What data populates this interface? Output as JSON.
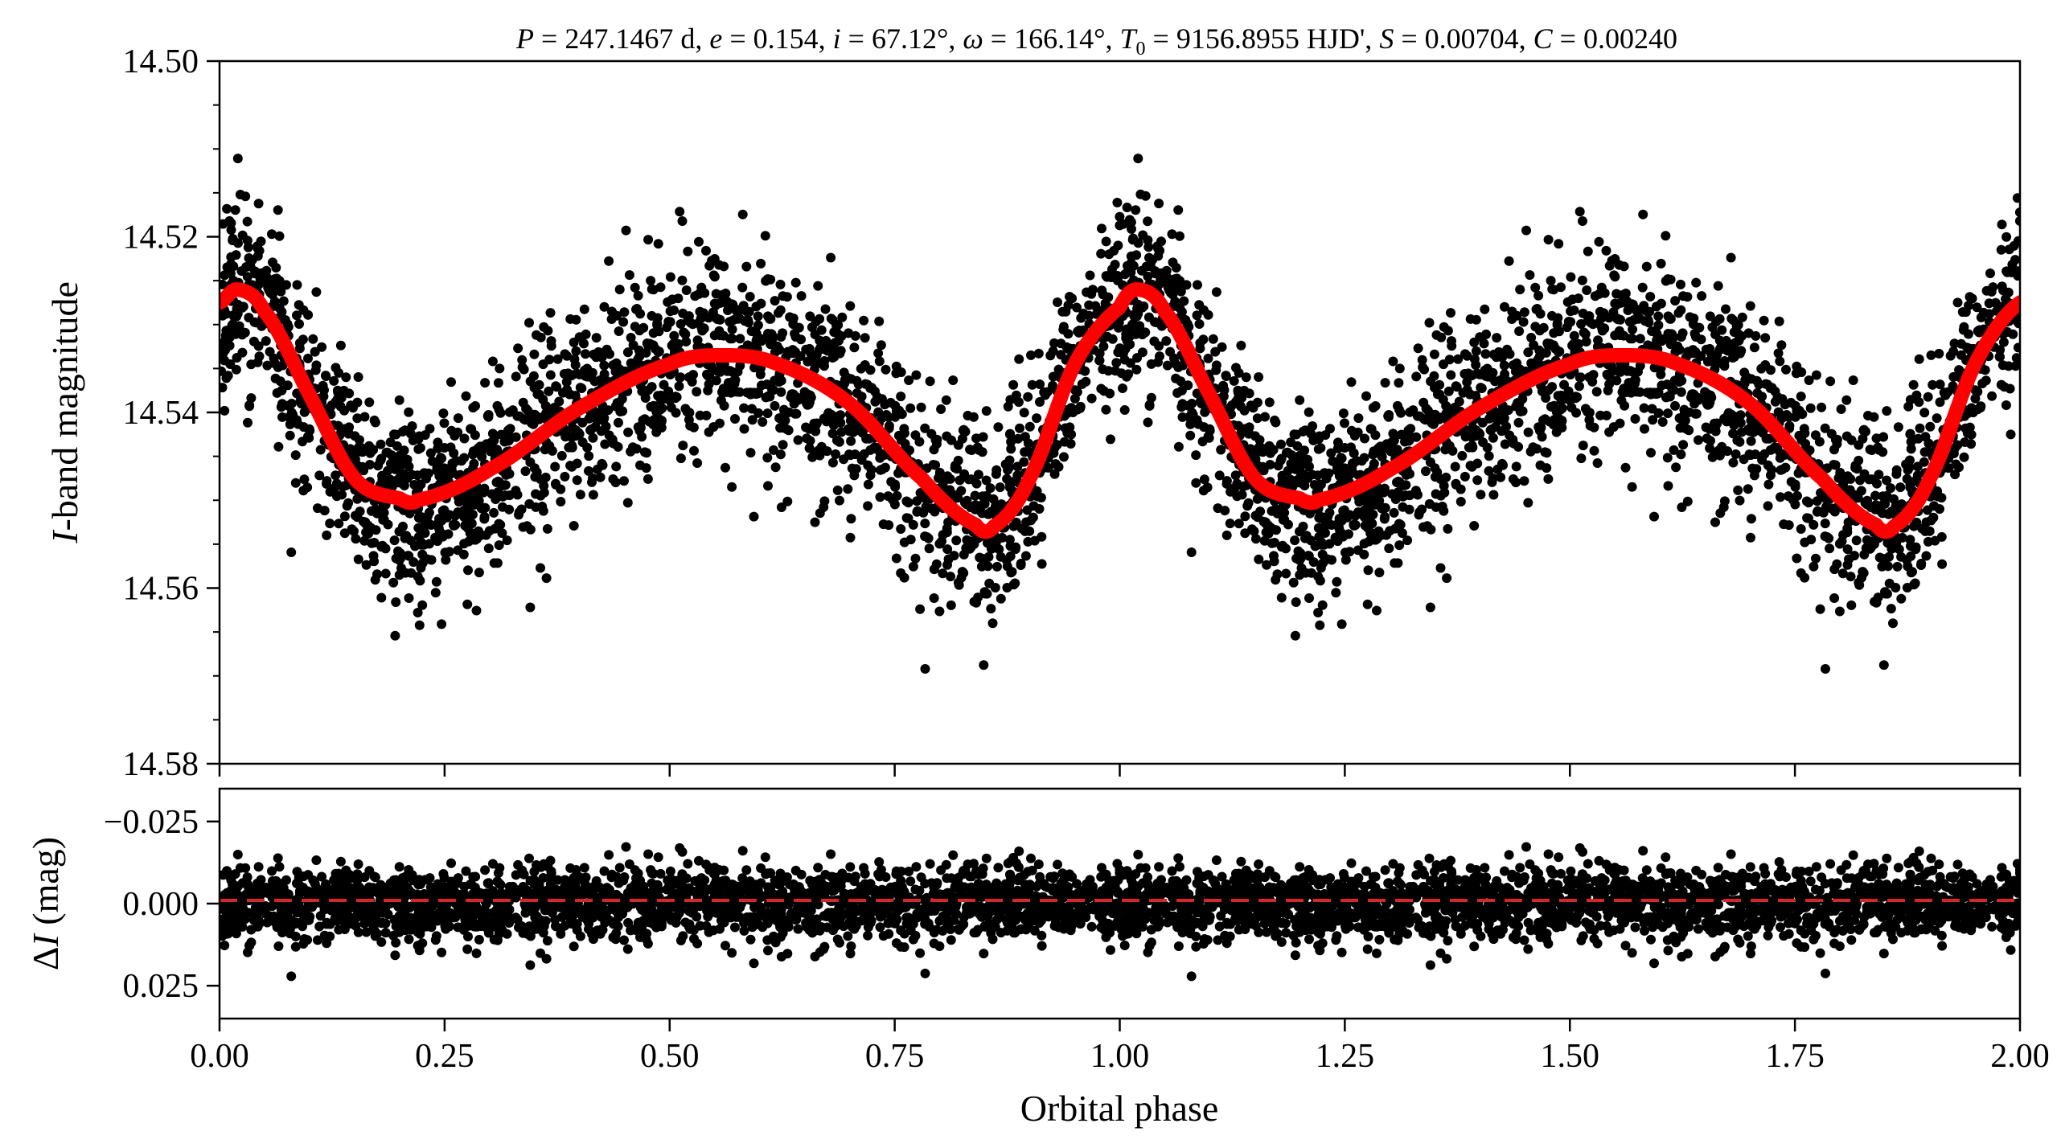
{
  "chart_data": [
    {
      "type": "scatter",
      "panel": "top",
      "title": "P = 247.1467 d, e = 0.154, i = 67.12°, ω = 166.14°, T0 = 9156.8955 HJD', S = 0.00704, C = 0.00240",
      "title_parts": {
        "p_sym": "P",
        "p_val": " = 247.1467 d, ",
        "e_sym": "e",
        "e_val": " = 0.154, ",
        "i_sym": "i",
        "i_val": " = 67.12°, ",
        "w_sym": "ω",
        "w_val": " = 166.14°, ",
        "t_sym": "T",
        "t_sub": "0",
        "t_val": " = 9156.8955 HJD', ",
        "s_sym": "S",
        "s_val": " = 0.00704, ",
        "c_sym": "C",
        "c_val": " = 0.00240"
      },
      "xlabel": "Orbital phase",
      "ylabel": "I-band magnitude",
      "ylabel_parts": {
        "italic": "I",
        "rest": "-band magnitude"
      },
      "xlim": [
        0,
        2
      ],
      "ylim": [
        14.58,
        14.5
      ],
      "y_inverted": true,
      "xticks": [
        "0.00",
        "0.25",
        "0.50",
        "0.75",
        "1.00",
        "1.25",
        "1.50",
        "1.75",
        "2.00"
      ],
      "yticks": [
        "14.50",
        "14.52",
        "14.54",
        "14.56",
        "14.58"
      ],
      "series": [
        {
          "kind": "points",
          "color": "#000000",
          "n_points_per_phase_cycle": 2200,
          "scatter_sigma_mag": 0.0065
        },
        {
          "kind": "model-curve",
          "color": "#ff0000",
          "x": [
            0.0,
            0.02,
            0.05,
            0.1,
            0.15,
            0.2,
            0.22,
            0.3,
            0.4,
            0.5,
            0.56,
            0.62,
            0.7,
            0.78,
            0.84,
            0.86,
            0.9,
            0.95,
            1.0,
            1.02,
            1.05,
            1.1,
            1.15,
            1.2,
            1.22,
            1.3,
            1.4,
            1.5,
            1.56,
            1.62,
            1.7,
            1.78,
            1.84,
            1.86,
            1.9,
            1.95,
            2.0
          ],
          "y": [
            14.5275,
            14.526,
            14.5285,
            14.538,
            14.5475,
            14.5498,
            14.55,
            14.5465,
            14.5395,
            14.5345,
            14.5335,
            14.5345,
            14.539,
            14.5475,
            14.5528,
            14.553,
            14.5475,
            14.5345,
            14.528,
            14.526,
            14.5285,
            14.538,
            14.5475,
            14.5498,
            14.55,
            14.5465,
            14.5395,
            14.5345,
            14.5335,
            14.5345,
            14.539,
            14.5475,
            14.5528,
            14.553,
            14.5475,
            14.5345,
            14.5275
          ]
        }
      ]
    },
    {
      "type": "scatter",
      "panel": "bottom",
      "xlabel": "Orbital phase",
      "ylabel": "ΔI (mag)",
      "ylabel_parts": {
        "delta": "Δ",
        "italic": "I",
        "rest": " (mag)"
      },
      "xlim": [
        0,
        2
      ],
      "ylim": [
        0.035,
        -0.035
      ],
      "y_inverted": true,
      "xticks": [
        "0.00",
        "0.25",
        "0.50",
        "0.75",
        "1.00",
        "1.25",
        "1.50",
        "1.75",
        "2.00"
      ],
      "yticks": [
        "−0.025",
        "0.000",
        "0.025"
      ],
      "series": [
        {
          "kind": "residual-points",
          "color": "#000000",
          "scatter_sigma_mag": 0.0065
        },
        {
          "kind": "zero-line",
          "color": "#d62728",
          "style": "dashed",
          "y": 0.0
        }
      ]
    }
  ]
}
